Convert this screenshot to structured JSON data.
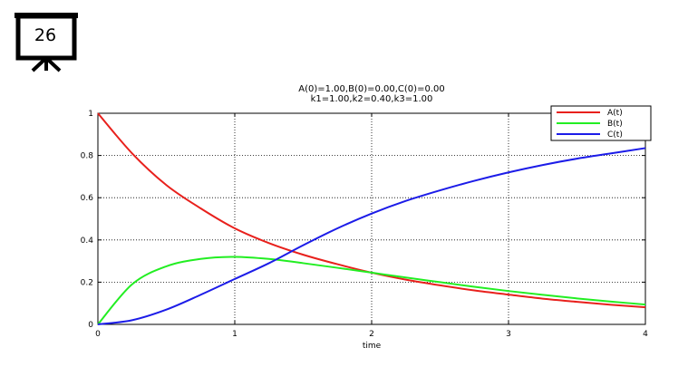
{
  "slide": {
    "number": "26"
  },
  "chart_data": {
    "type": "line",
    "title": [
      "A(0)=1.00,B(0)=0.00,C(0)=0.00",
      "k1=1.00,k2=0.40,k3=1.00"
    ],
    "xlabel": "time",
    "ylabel": "",
    "xlim": [
      0,
      4
    ],
    "ylim": [
      0,
      1
    ],
    "xticks": [
      "0",
      "1",
      "2",
      "3",
      "4"
    ],
    "yticks": [
      "0",
      "0.2",
      "0.4",
      "0.6",
      "0.8",
      "1"
    ],
    "grid": true,
    "legend_position": "top-right",
    "x": [
      0,
      0.25,
      0.5,
      0.75,
      1,
      1.25,
      1.5,
      1.75,
      2,
      2.25,
      2.5,
      2.75,
      3,
      3.25,
      3.5,
      3.75,
      4
    ],
    "series": [
      {
        "name": "A(t)",
        "color": "#e8201c",
        "values": [
          1.0,
          0.81,
          0.66,
          0.55,
          0.455,
          0.385,
          0.33,
          0.285,
          0.245,
          0.212,
          0.185,
          0.161,
          0.141,
          0.122,
          0.107,
          0.093,
          0.081
        ]
      },
      {
        "name": "B(t)",
        "color": "#22ee22",
        "values": [
          0.0,
          0.19,
          0.275,
          0.31,
          0.32,
          0.31,
          0.29,
          0.268,
          0.245,
          0.222,
          0.2,
          0.178,
          0.158,
          0.14,
          0.123,
          0.108,
          0.094
        ]
      },
      {
        "name": "C(t)",
        "color": "#1c1ce8",
        "values": [
          0.0,
          0.02,
          0.07,
          0.14,
          0.215,
          0.29,
          0.375,
          0.455,
          0.525,
          0.585,
          0.635,
          0.68,
          0.72,
          0.755,
          0.785,
          0.81,
          0.835
        ]
      }
    ]
  }
}
